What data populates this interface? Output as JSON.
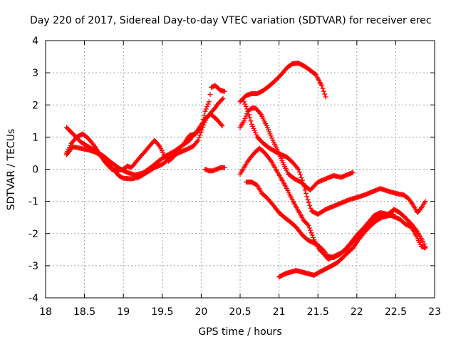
{
  "chart_data": {
    "type": "scatter",
    "title": "Day 220 of 2017, Sidereal Day-to-day VTEC variation (SDTVAR) for receiver erec",
    "xlabel": "GPS time / hours",
    "ylabel": "SDTVAR / TECUs",
    "xlim": [
      18,
      23
    ],
    "ylim": [
      -4,
      4
    ],
    "xticks": [
      "18",
      "18.5",
      "19",
      "19.5",
      "20",
      "20.5",
      "21",
      "21.5",
      "22",
      "22.5",
      "23"
    ],
    "yticks": [
      "-4",
      "-3",
      "-2",
      "-1",
      "0",
      "1",
      "2",
      "3",
      "4"
    ],
    "grid": true,
    "marker": "+",
    "color": "#ff0000",
    "series": [
      {
        "name": "s1",
        "points": [
          [
            18.27,
            1.3
          ],
          [
            18.35,
            1.1
          ],
          [
            18.45,
            0.85
          ],
          [
            18.55,
            0.7
          ],
          [
            18.65,
            0.55
          ],
          [
            18.75,
            0.4
          ],
          [
            18.85,
            0.2
          ],
          [
            18.95,
            0.02
          ],
          [
            19.05,
            -0.1
          ],
          [
            19.15,
            -0.18
          ],
          [
            19.25,
            -0.12
          ],
          [
            19.35,
            0.05
          ],
          [
            19.45,
            0.25
          ],
          [
            19.55,
            0.42
          ],
          [
            19.65,
            0.55
          ],
          [
            19.75,
            0.72
          ],
          [
            19.85,
            0.9
          ],
          [
            19.95,
            1.2
          ],
          [
            20.05,
            1.55
          ],
          [
            20.12,
            1.72
          ],
          [
            20.2,
            1.55
          ],
          [
            20.27,
            1.35
          ]
        ]
      },
      {
        "name": "s2",
        "points": [
          [
            18.27,
            0.5
          ],
          [
            18.33,
            0.8
          ],
          [
            18.4,
            1.0
          ],
          [
            18.48,
            1.1
          ],
          [
            18.55,
            0.95
          ],
          [
            18.62,
            0.75
          ],
          [
            18.7,
            0.45
          ],
          [
            18.78,
            0.2
          ],
          [
            18.86,
            0.02
          ],
          [
            18.94,
            -0.2
          ],
          [
            19.0,
            -0.28
          ],
          [
            19.1,
            -0.3
          ],
          [
            19.2,
            -0.25
          ],
          [
            19.3,
            -0.1
          ],
          [
            19.4,
            0.05
          ],
          [
            19.5,
            0.15
          ],
          [
            19.6,
            0.35
          ],
          [
            19.7,
            0.5
          ],
          [
            19.8,
            0.6
          ],
          [
            19.9,
            0.72
          ],
          [
            19.96,
            0.9
          ],
          [
            20.02,
            1.3
          ],
          [
            20.07,
            1.6
          ],
          [
            20.12,
            1.75
          ],
          [
            20.17,
            1.88
          ],
          [
            20.22,
            2.05
          ],
          [
            20.28,
            2.2
          ]
        ]
      },
      {
        "name": "s3",
        "points": [
          [
            18.27,
            0.45
          ],
          [
            18.35,
            0.7
          ],
          [
            18.45,
            0.65
          ],
          [
            18.55,
            0.6
          ],
          [
            18.62,
            0.55
          ],
          [
            18.7,
            0.45
          ],
          [
            18.77,
            0.2
          ],
          [
            18.85,
            0.0
          ],
          [
            18.92,
            -0.05
          ],
          [
            19.0,
            0.0
          ],
          [
            19.05,
            0.1
          ],
          [
            19.1,
            0.05
          ],
          [
            19.4,
            0.9
          ],
          [
            19.47,
            0.7
          ],
          [
            19.52,
            0.45
          ],
          [
            19.58,
            0.25
          ],
          [
            19.65,
            0.4
          ],
          [
            19.7,
            0.6
          ],
          [
            19.78,
            0.8
          ],
          [
            19.85,
            1.05
          ],
          [
            19.93,
            1.1
          ],
          [
            20.0,
            1.3
          ],
          [
            20.05,
            1.8
          ],
          [
            20.1,
            2.1
          ],
          [
            20.13,
            2.55
          ],
          [
            20.18,
            2.6
          ],
          [
            20.25,
            2.45
          ],
          [
            20.3,
            2.42
          ]
        ]
      },
      {
        "name": "s4",
        "points": [
          [
            20.05,
            0.0
          ],
          [
            20.1,
            -0.05
          ],
          [
            20.15,
            -0.05
          ],
          [
            20.2,
            0.0
          ],
          [
            20.25,
            0.05
          ],
          [
            20.3,
            0.05
          ]
        ]
      },
      {
        "name": "s5",
        "points": [
          [
            20.5,
            2.1
          ],
          [
            20.58,
            2.3
          ],
          [
            20.65,
            2.35
          ],
          [
            20.72,
            2.35
          ],
          [
            20.8,
            2.45
          ],
          [
            20.88,
            2.6
          ],
          [
            20.95,
            2.75
          ],
          [
            21.03,
            2.95
          ],
          [
            21.1,
            3.15
          ],
          [
            21.17,
            3.28
          ],
          [
            21.25,
            3.3
          ],
          [
            21.33,
            3.2
          ],
          [
            21.4,
            3.08
          ],
          [
            21.47,
            2.95
          ],
          [
            21.55,
            2.6
          ],
          [
            21.6,
            2.25
          ]
        ]
      },
      {
        "name": "s6",
        "points": [
          [
            20.5,
            1.3
          ],
          [
            20.55,
            1.5
          ],
          [
            20.6,
            1.8
          ],
          [
            20.65,
            1.9
          ],
          [
            20.7,
            1.9
          ],
          [
            20.77,
            1.7
          ],
          [
            20.85,
            1.3
          ],
          [
            20.92,
            0.9
          ],
          [
            20.98,
            0.6
          ],
          [
            21.05,
            0.2
          ],
          [
            21.12,
            -0.15
          ],
          [
            21.2,
            -0.3
          ],
          [
            21.28,
            -0.4
          ],
          [
            21.35,
            -0.55
          ],
          [
            21.4,
            -0.65
          ],
          [
            21.5,
            -0.4
          ],
          [
            21.6,
            -0.3
          ],
          [
            21.7,
            -0.2
          ],
          [
            21.8,
            -0.25
          ],
          [
            21.9,
            -0.15
          ],
          [
            21.95,
            -0.1
          ]
        ]
      },
      {
        "name": "s7",
        "points": [
          [
            20.55,
            2.1
          ],
          [
            20.6,
            1.8
          ],
          [
            20.65,
            1.4
          ],
          [
            20.72,
            1.0
          ],
          [
            20.8,
            0.8
          ],
          [
            20.88,
            0.65
          ],
          [
            20.95,
            0.55
          ],
          [
            21.03,
            0.45
          ],
          [
            21.1,
            0.38
          ],
          [
            21.18,
            0.2
          ],
          [
            21.25,
            0.0
          ],
          [
            21.3,
            -0.35
          ],
          [
            21.37,
            -0.95
          ],
          [
            21.42,
            -1.3
          ],
          [
            21.5,
            -1.4
          ],
          [
            21.6,
            -1.25
          ],
          [
            21.7,
            -1.15
          ],
          [
            21.8,
            -1.05
          ],
          [
            21.9,
            -0.95
          ],
          [
            22.0,
            -0.88
          ],
          [
            22.1,
            -0.8
          ],
          [
            22.2,
            -0.7
          ],
          [
            22.3,
            -0.6
          ],
          [
            22.4,
            -0.68
          ],
          [
            22.5,
            -0.75
          ],
          [
            22.6,
            -0.8
          ],
          [
            22.66,
            -0.9
          ],
          [
            22.72,
            -1.1
          ],
          [
            22.78,
            -1.35
          ],
          [
            22.83,
            -1.2
          ],
          [
            22.88,
            -1.0
          ]
        ]
      },
      {
        "name": "s8",
        "points": [
          [
            20.5,
            -0.15
          ],
          [
            20.55,
            0.05
          ],
          [
            20.6,
            0.25
          ],
          [
            20.68,
            0.5
          ],
          [
            20.75,
            0.65
          ],
          [
            20.82,
            0.5
          ],
          [
            20.9,
            0.25
          ],
          [
            20.97,
            -0.05
          ],
          [
            21.03,
            -0.3
          ],
          [
            21.1,
            -0.6
          ],
          [
            21.17,
            -0.95
          ],
          [
            21.25,
            -1.3
          ],
          [
            21.32,
            -1.6
          ],
          [
            21.38,
            -1.75
          ],
          [
            21.45,
            -2.2
          ],
          [
            21.52,
            -2.5
          ],
          [
            21.58,
            -2.65
          ],
          [
            21.63,
            -2.8
          ],
          [
            21.7,
            -2.72
          ],
          [
            21.8,
            -2.6
          ],
          [
            21.88,
            -2.45
          ],
          [
            21.95,
            -2.25
          ],
          [
            22.05,
            -1.95
          ],
          [
            22.15,
            -1.75
          ],
          [
            22.25,
            -1.55
          ],
          [
            22.35,
            -1.4
          ],
          [
            22.45,
            -1.45
          ],
          [
            22.55,
            -1.55
          ],
          [
            22.62,
            -1.7
          ],
          [
            22.7,
            -1.8
          ],
          [
            22.77,
            -2.1
          ],
          [
            22.83,
            -2.4
          ],
          [
            22.88,
            -2.45
          ]
        ]
      },
      {
        "name": "s9",
        "points": [
          [
            20.58,
            -0.4
          ],
          [
            20.65,
            -0.4
          ],
          [
            20.72,
            -0.5
          ],
          [
            20.78,
            -0.75
          ],
          [
            20.85,
            -0.9
          ],
          [
            20.92,
            -1.1
          ],
          [
            21.0,
            -1.35
          ],
          [
            21.07,
            -1.5
          ],
          [
            21.15,
            -1.65
          ],
          [
            21.22,
            -1.8
          ],
          [
            21.3,
            -2.05
          ],
          [
            21.37,
            -2.2
          ],
          [
            21.45,
            -2.3
          ],
          [
            21.52,
            -2.4
          ],
          [
            21.58,
            -2.55
          ],
          [
            21.62,
            -2.7
          ],
          [
            21.7,
            -2.75
          ],
          [
            21.78,
            -2.65
          ],
          [
            21.85,
            -2.5
          ],
          [
            21.92,
            -2.3
          ],
          [
            22.0,
            -2.05
          ],
          [
            22.08,
            -1.85
          ],
          [
            22.15,
            -1.65
          ],
          [
            22.22,
            -1.45
          ],
          [
            22.3,
            -1.35
          ],
          [
            22.4,
            -1.4
          ],
          [
            22.48,
            -1.25
          ],
          [
            22.55,
            -1.35
          ],
          [
            22.62,
            -1.5
          ],
          [
            22.7,
            -1.7
          ],
          [
            22.78,
            -1.95
          ],
          [
            22.85,
            -2.25
          ],
          [
            22.88,
            -2.4
          ]
        ]
      },
      {
        "name": "s10",
        "points": [
          [
            21.0,
            -3.35
          ],
          [
            21.08,
            -3.25
          ],
          [
            21.15,
            -3.2
          ],
          [
            21.22,
            -3.15
          ],
          [
            21.3,
            -3.2
          ],
          [
            21.38,
            -3.25
          ],
          [
            21.45,
            -3.3
          ],
          [
            21.52,
            -3.2
          ],
          [
            21.6,
            -3.1
          ],
          [
            21.68,
            -3.0
          ],
          [
            21.75,
            -2.9
          ],
          [
            21.82,
            -2.75
          ],
          [
            21.88,
            -2.6
          ],
          [
            21.95,
            -2.45
          ],
          [
            22.02,
            -2.2
          ],
          [
            22.1,
            -1.95
          ],
          [
            22.18,
            -1.75
          ],
          [
            22.25,
            -1.6
          ],
          [
            22.32,
            -1.5
          ],
          [
            22.4,
            -1.45
          ],
          [
            22.47,
            -1.4
          ]
        ]
      }
    ]
  }
}
